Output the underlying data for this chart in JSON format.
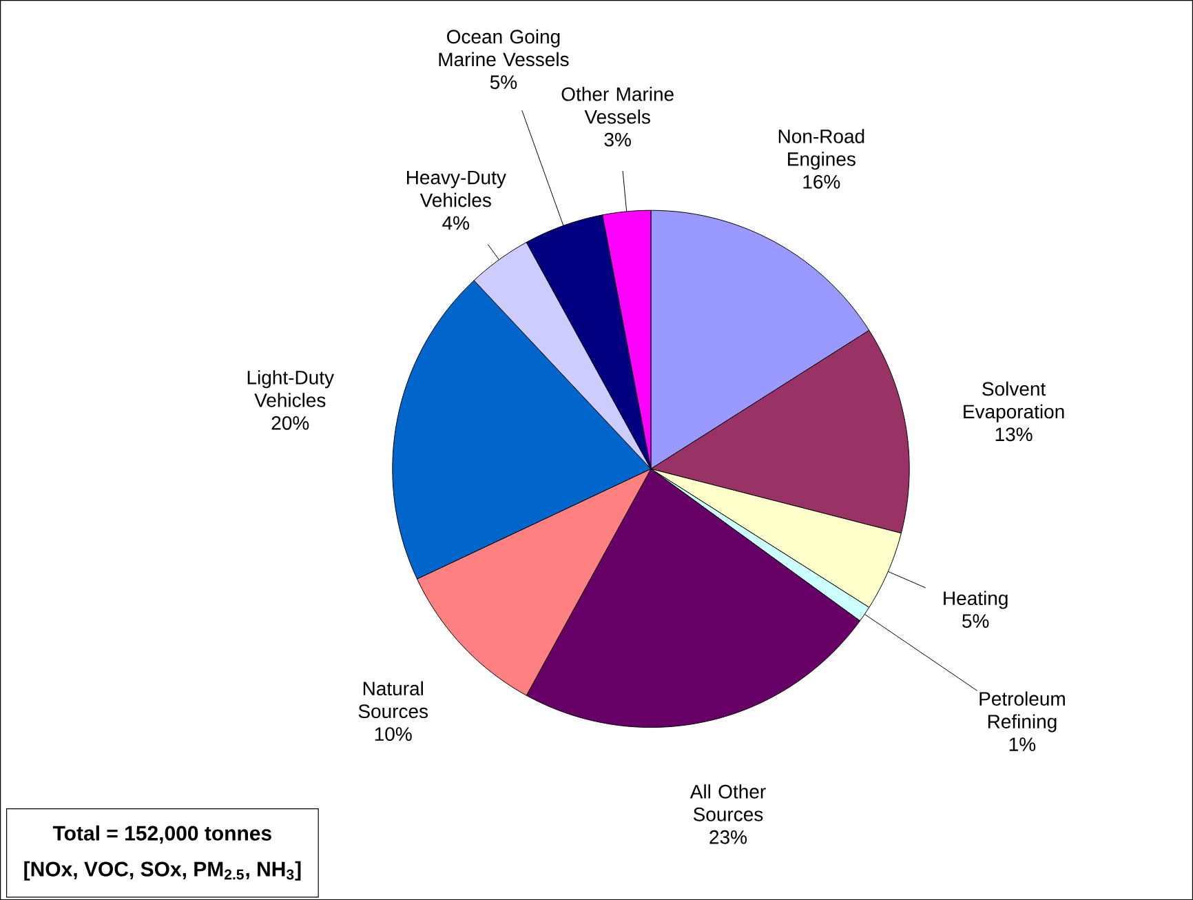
{
  "chart_data": {
    "type": "pie",
    "categories": [
      "Non-Road Engines",
      "Solvent Evaporation",
      "Heating",
      "Petroleum Refining",
      "All Other Sources",
      "Natural Sources",
      "Light-Duty Vehicles",
      "Heavy-Duty Vehicles",
      "Ocean Going Marine Vessels",
      "Other Marine Vessels"
    ],
    "values": [
      16,
      13,
      5,
      1,
      23,
      10,
      20,
      4,
      5,
      3
    ],
    "value_labels": [
      "16%",
      "13%",
      "5%",
      "1%",
      "23%",
      "10%",
      "20%",
      "4%",
      "5%",
      "3%"
    ],
    "colors": [
      "#9999ff",
      "#993366",
      "#ffffcc",
      "#ccffff",
      "#660066",
      "#ff8080",
      "#0066cc",
      "#ccccff",
      "#000080",
      "#ff00ff"
    ],
    "annotations": [
      "Total = 152,000 tonnes",
      "[NOx, VOC, SOx, PM$_{2.5}$, NH$_{3}$]"
    ]
  }
}
